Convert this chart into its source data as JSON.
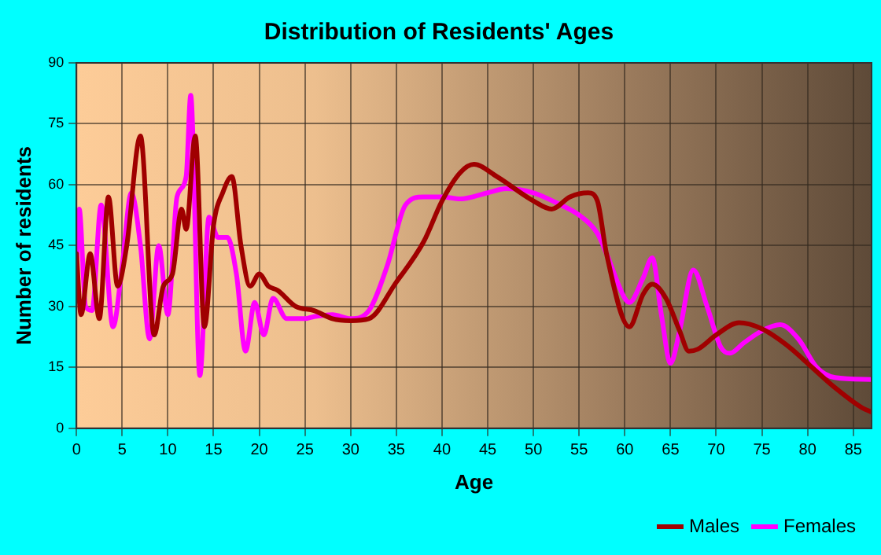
{
  "chart_data": {
    "type": "line",
    "title": "Distribution of Residents' Ages",
    "xlabel": "Age",
    "ylabel": "Number of residents",
    "xlim": [
      0,
      87
    ],
    "xticks": [
      0,
      5,
      10,
      15,
      20,
      25,
      30,
      35,
      40,
      45,
      50,
      55,
      60,
      65,
      70,
      75,
      80,
      85
    ],
    "ylim": [
      0,
      90
    ],
    "yticks": [
      0,
      15,
      30,
      45,
      60,
      75,
      90
    ],
    "grid": true,
    "legend": "bottom right",
    "marker": "none",
    "line_style": "solid",
    "series": [
      {
        "name": "Males",
        "color": "#a00000",
        "x": [
          0,
          0.5,
          1.5,
          2.5,
          3.5,
          4.5,
          5.5,
          7,
          8.5,
          9.5,
          10.5,
          11.5,
          12,
          13,
          14,
          15,
          16,
          17,
          18,
          19,
          20,
          21,
          22,
          24,
          26,
          28,
          30,
          32,
          35,
          38,
          40,
          42,
          43.5,
          46,
          50,
          52,
          54,
          56,
          57,
          58,
          60.5,
          62,
          63,
          64.5,
          66,
          67,
          68,
          70,
          72.5,
          75,
          78,
          80,
          83,
          86,
          87
        ],
        "values": [
          43,
          28,
          43,
          27,
          57,
          35,
          45,
          72,
          23,
          35,
          38,
          54,
          49,
          72,
          25,
          50,
          58,
          62,
          45,
          35,
          38,
          35,
          34,
          30,
          29,
          27,
          26.5,
          27,
          36,
          46,
          56,
          63,
          65,
          62,
          56,
          54,
          57,
          58,
          56,
          43,
          25,
          33,
          35.5,
          32,
          24,
          19,
          19.5,
          23,
          26,
          24.5,
          20,
          16,
          10,
          5,
          4
        ]
      },
      {
        "name": "Females",
        "color": "#ff00ff",
        "x": [
          0,
          0.3,
          1,
          1.7,
          2.7,
          4,
          5,
          6,
          7,
          8,
          9,
          10,
          11,
          12,
          12.5,
          13.5,
          14.5,
          15.5,
          16.5,
          17.5,
          18.5,
          19.5,
          20.5,
          21.5,
          23,
          25,
          26,
          28,
          30,
          32,
          34,
          36,
          38,
          40,
          42,
          45,
          47,
          50,
          53,
          55,
          57,
          58,
          60,
          60.5,
          62,
          63,
          64,
          65,
          66,
          67.5,
          69,
          70.5,
          71.5,
          73,
          75,
          77,
          79,
          81,
          83,
          87
        ],
        "values": [
          39,
          54,
          30,
          29,
          55,
          25,
          40,
          58,
          45,
          22,
          45,
          28,
          57,
          62,
          82,
          13,
          52,
          47,
          47,
          38,
          19,
          31,
          23,
          32,
          27,
          27,
          27.5,
          28,
          27,
          29,
          40,
          55,
          57,
          57,
          56.5,
          58,
          59,
          58,
          55,
          52.5,
          48,
          43,
          32,
          31,
          37,
          42,
          28,
          16,
          24,
          39,
          30,
          20,
          18.5,
          21,
          24,
          25.5,
          22,
          15,
          12.5,
          12
        ]
      }
    ]
  }
}
